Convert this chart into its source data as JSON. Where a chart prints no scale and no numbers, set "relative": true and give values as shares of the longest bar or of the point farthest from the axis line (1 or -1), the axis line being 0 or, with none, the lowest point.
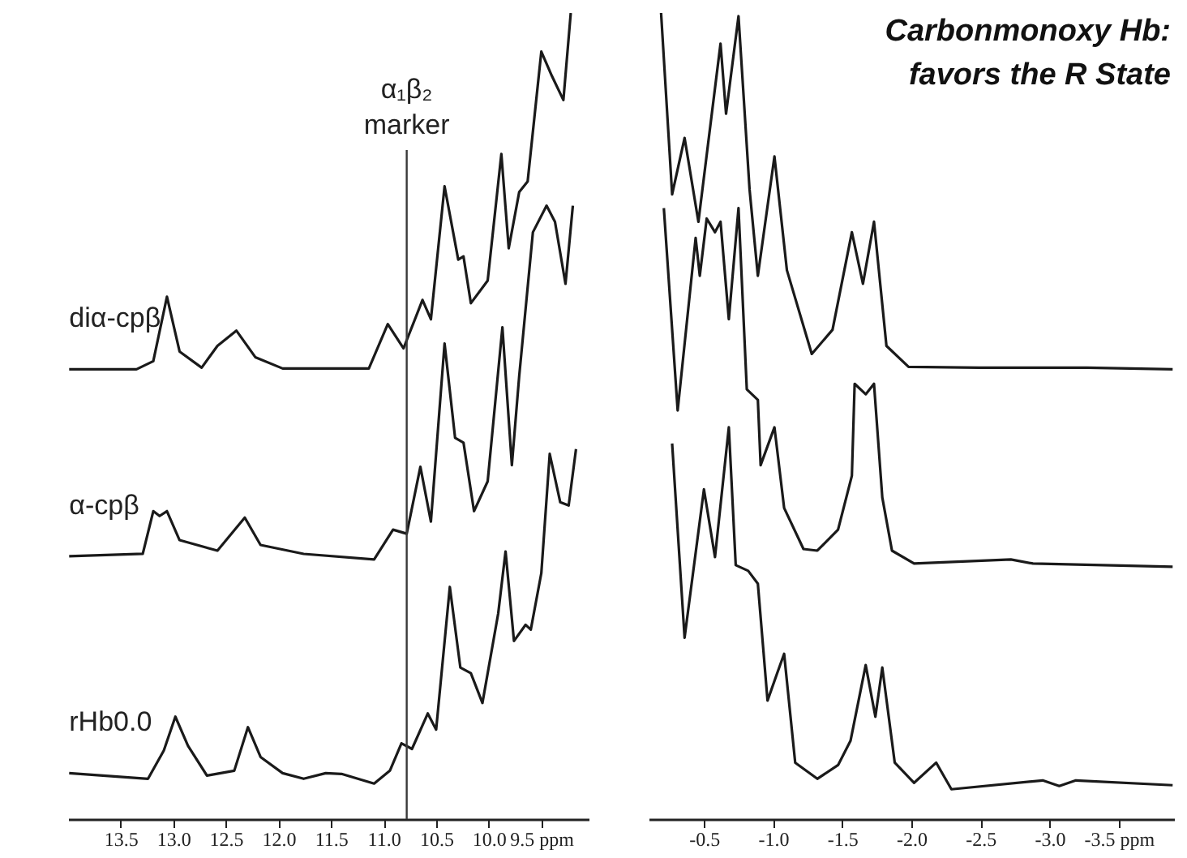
{
  "chart_data": [
    {
      "type": "line",
      "relative": true,
      "xlim": [
        14.0,
        9.05
      ],
      "xticks": [
        {
          "value": 13.5,
          "label": "13.5"
        },
        {
          "value": 13.0,
          "label": "13.0"
        },
        {
          "value": 12.5,
          "label": "12.5"
        },
        {
          "value": 12.0,
          "label": "12.0"
        },
        {
          "value": 11.5,
          "label": "11.5"
        },
        {
          "value": 11.0,
          "label": "11.0"
        },
        {
          "value": 10.5,
          "label": "10.5"
        },
        {
          "value": 10.0,
          "label": "10.0"
        },
        {
          "value": 9.5,
          "label": "9.5 ppm"
        }
      ],
      "grid": false,
      "legend": false,
      "marker": "none",
      "line_style": "solid",
      "ref_lines": [
        {
          "axis": "x",
          "value": 10.78,
          "label": "α₁β₂ marker",
          "color": "#3a3a3a"
        }
      ],
      "series": [
        {
          "name": "diα-cpβ",
          "color": "#1a1a1a",
          "x": [
            13.99,
            13.35,
            13.19,
            13.06,
            12.94,
            12.73,
            12.58,
            12.4,
            12.22,
            11.96,
            11.14,
            10.96,
            10.81,
            10.63,
            10.55,
            10.42,
            10.29,
            10.24,
            10.17,
            10.01,
            9.88,
            9.81,
            9.71,
            9.63,
            9.5,
            9.4,
            9.29,
            9.22
          ],
          "values": [
            0.558,
            0.558,
            0.568,
            0.648,
            0.58,
            0.56,
            0.587,
            0.606,
            0.573,
            0.559,
            0.559,
            0.614,
            0.584,
            0.644,
            0.62,
            0.785,
            0.694,
            0.698,
            0.64,
            0.668,
            0.825,
            0.708,
            0.778,
            0.791,
            0.952,
            0.922,
            0.892,
            1.0
          ]
        },
        {
          "name": "α-cpβ",
          "color": "#1a1a1a",
          "x": [
            13.99,
            13.29,
            13.19,
            13.13,
            13.06,
            12.94,
            12.58,
            12.32,
            12.17,
            11.76,
            11.09,
            10.91,
            10.78,
            10.65,
            10.55,
            10.42,
            10.32,
            10.24,
            10.14,
            10.01,
            9.87,
            9.78,
            9.71,
            9.58,
            9.45,
            9.37,
            9.27,
            9.2
          ],
          "values": [
            0.326,
            0.329,
            0.382,
            0.376,
            0.382,
            0.346,
            0.333,
            0.374,
            0.34,
            0.329,
            0.322,
            0.359,
            0.354,
            0.437,
            0.369,
            0.59,
            0.473,
            0.467,
            0.382,
            0.419,
            0.61,
            0.439,
            0.55,
            0.728,
            0.761,
            0.741,
            0.664,
            0.761
          ]
        },
        {
          "name": "rHb0.0",
          "color": "#1a1a1a",
          "x": [
            13.99,
            13.24,
            13.09,
            12.98,
            12.86,
            12.68,
            12.42,
            12.29,
            12.17,
            11.96,
            11.76,
            11.55,
            11.4,
            11.09,
            10.94,
            10.83,
            10.73,
            10.58,
            10.5,
            10.37,
            10.27,
            10.17,
            10.06,
            9.91,
            9.84,
            9.76,
            9.65,
            9.6,
            9.5,
            9.42,
            9.32,
            9.24,
            9.17
          ],
          "values": [
            0.057,
            0.05,
            0.085,
            0.127,
            0.091,
            0.054,
            0.06,
            0.114,
            0.077,
            0.057,
            0.05,
            0.057,
            0.056,
            0.044,
            0.06,
            0.094,
            0.087,
            0.131,
            0.111,
            0.288,
            0.188,
            0.181,
            0.144,
            0.255,
            0.332,
            0.221,
            0.241,
            0.235,
            0.305,
            0.453,
            0.393,
            0.389,
            0.459
          ]
        }
      ]
    },
    {
      "type": "line",
      "relative": true,
      "title": "Carbonmonoxy Hb:\nfavors the R State",
      "xlim": [
        -0.1,
        -3.9
      ],
      "xticks": [
        {
          "value": -0.5,
          "label": "-0.5"
        },
        {
          "value": -1.0,
          "label": "-1.0"
        },
        {
          "value": -1.5,
          "label": "-1.5"
        },
        {
          "value": -2.0,
          "label": "-2.0"
        },
        {
          "value": -2.5,
          "label": "-2.5"
        },
        {
          "value": -3.0,
          "label": "-3.0"
        },
        {
          "value": -3.5,
          "label": "-3.5 ppm"
        }
      ],
      "grid": false,
      "legend": false,
      "marker": "none",
      "line_style": "solid",
      "series": [
        {
          "color": "#1a1a1a",
          "x": [
            -0.19,
            -0.27,
            -0.36,
            -0.46,
            -0.62,
            -0.66,
            -0.75,
            -0.83,
            -0.89,
            -1.01,
            -1.1,
            -1.28,
            -1.43,
            -1.57,
            -1.65,
            -1.73,
            -1.82,
            -1.98,
            -2.49,
            -3.27,
            -3.89
          ],
          "values": [
            1.0,
            0.775,
            0.845,
            0.741,
            0.962,
            0.875,
            0.996,
            0.781,
            0.674,
            0.822,
            0.681,
            0.577,
            0.607,
            0.728,
            0.664,
            0.741,
            0.587,
            0.561,
            0.56,
            0.56,
            0.558
          ]
        },
        {
          "color": "#1a1a1a",
          "x": [
            -0.21,
            -0.31,
            -0.44,
            -0.47,
            -0.52,
            -0.58,
            -0.62,
            -0.68,
            -0.75,
            -0.81,
            -0.89,
            -0.91,
            -1.01,
            -1.08,
            -1.22,
            -1.32,
            -1.47,
            -1.57,
            -1.59,
            -1.67,
            -1.73,
            -1.79,
            -1.86,
            -2.02,
            -2.72,
            -2.88,
            -3.89
          ],
          "values": [
            0.758,
            0.507,
            0.721,
            0.674,
            0.745,
            0.728,
            0.741,
            0.62,
            0.758,
            0.533,
            0.52,
            0.439,
            0.486,
            0.386,
            0.335,
            0.333,
            0.359,
            0.426,
            0.54,
            0.527,
            0.54,
            0.399,
            0.333,
            0.317,
            0.322,
            0.317,
            0.313
          ]
        },
        {
          "color": "#1a1a1a",
          "x": [
            -0.27,
            -0.36,
            -0.5,
            -0.58,
            -0.68,
            -0.73,
            -0.82,
            -0.89,
            -0.96,
            -1.03,
            -1.08,
            -1.16,
            -1.32,
            -1.47,
            -1.56,
            -1.67,
            -1.74,
            -1.79,
            -1.88,
            -2.02,
            -2.18,
            -2.29,
            -2.95,
            -3.07,
            -3.19,
            -3.89
          ],
          "values": [
            0.466,
            0.225,
            0.409,
            0.325,
            0.486,
            0.315,
            0.308,
            0.292,
            0.147,
            0.181,
            0.205,
            0.07,
            0.05,
            0.067,
            0.097,
            0.191,
            0.127,
            0.188,
            0.07,
            0.045,
            0.07,
            0.037,
            0.048,
            0.041,
            0.048,
            0.042
          ]
        }
      ]
    }
  ]
}
